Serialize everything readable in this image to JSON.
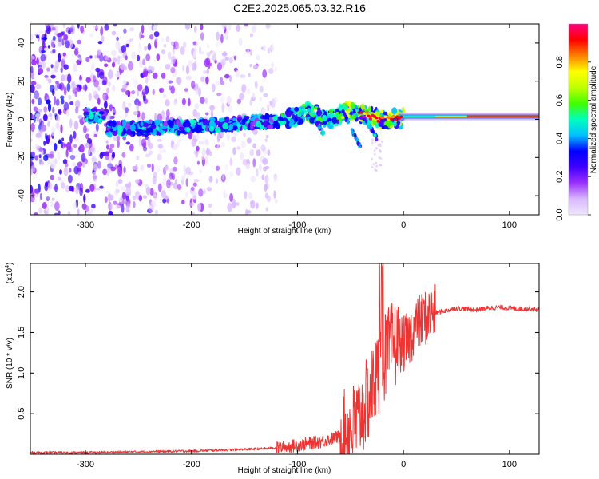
{
  "title": "C2E2.2025.065.03.32.R16",
  "chart_data": [
    {
      "type": "heatmap",
      "xlabel": "Height of straight line (km)",
      "ylabel": "Frequency (Hz)",
      "xlim": [
        -352,
        128
      ],
      "ylim": [
        -50,
        50
      ],
      "xticks": [
        -300,
        -200,
        -100,
        0,
        100
      ],
      "yticks": [
        -40,
        -20,
        0,
        20,
        40
      ],
      "xtick_labels": [
        "-300",
        "-200",
        "-100",
        "0",
        "100"
      ],
      "ytick_labels": [
        "-40",
        "-20",
        "0",
        "20",
        "40"
      ],
      "colorbar": {
        "label": "Normalized spectral amplitude",
        "range": [
          0,
          1
        ],
        "ticks": [
          0.0,
          0.2,
          0.4,
          0.6,
          0.8
        ],
        "tick_labels": [
          "0.0",
          "0.2",
          "0.4",
          "0.6",
          "0.8"
        ],
        "colormap": [
          "#f0e6ff",
          "#d8b8ff",
          "#9b30ff",
          "#4000ff",
          "#0000ff",
          "#00c0ff",
          "#00ffc0",
          "#40ff00",
          "#c0ff00",
          "#ffff00",
          "#ff8000",
          "#ff0000",
          "#ff0080"
        ]
      },
      "ridge": [
        {
          "x": -280,
          "y": -5
        },
        {
          "x": -200,
          "y": -4
        },
        {
          "x": -150,
          "y": -2
        },
        {
          "x": -120,
          "y": -1
        },
        {
          "x": -100,
          "y": 2
        },
        {
          "x": -90,
          "y": 4
        },
        {
          "x": -70,
          "y": 0
        },
        {
          "x": -50,
          "y": 5
        },
        {
          "x": -40,
          "y": 3
        },
        {
          "x": -20,
          "y": 0
        },
        {
          "x": 0,
          "y": 1
        },
        {
          "x": 60,
          "y": 1
        },
        {
          "x": 128,
          "y": 2
        }
      ]
    },
    {
      "type": "line",
      "xlabel": "Height of straight line (km)",
      "ylabel": "SNR (10 * v/v)",
      "scale_label": "(x10^4)",
      "xlim": [
        -352,
        128
      ],
      "ylim": [
        0,
        2.35
      ],
      "xticks": [
        -300,
        -200,
        -100,
        0,
        100
      ],
      "yticks": [
        0.5,
        1.0,
        1.5,
        2.0
      ],
      "xtick_labels": [
        "-300",
        "-200",
        "-100",
        "0",
        "100"
      ],
      "ytick_labels": [
        "0.5",
        "1.0",
        "1.5",
        "2.0"
      ],
      "color": "#ee3333",
      "series": [
        {
          "x": [
            -352,
            -300,
            -250,
            -200,
            -150,
            -130,
            -110,
            -100,
            -90,
            -80,
            -70,
            -60,
            -50,
            -45,
            -40,
            -35,
            -30,
            -25,
            -20,
            -15,
            -10,
            -5,
            0,
            5,
            10,
            15,
            20,
            25,
            30,
            40,
            50,
            60,
            70,
            80,
            90,
            100,
            110,
            120,
            128
          ],
          "y": [
            0.02,
            0.02,
            0.03,
            0.04,
            0.06,
            0.07,
            0.09,
            0.11,
            0.13,
            0.15,
            0.18,
            0.22,
            0.3,
            0.38,
            0.5,
            0.62,
            0.78,
            0.95,
            1.15,
            1.25,
            1.35,
            1.35,
            1.35,
            1.42,
            1.55,
            1.62,
            1.68,
            1.71,
            1.74,
            1.77,
            1.8,
            1.79,
            1.78,
            1.8,
            1.81,
            1.8,
            1.79,
            1.79,
            1.78
          ]
        }
      ]
    }
  ]
}
